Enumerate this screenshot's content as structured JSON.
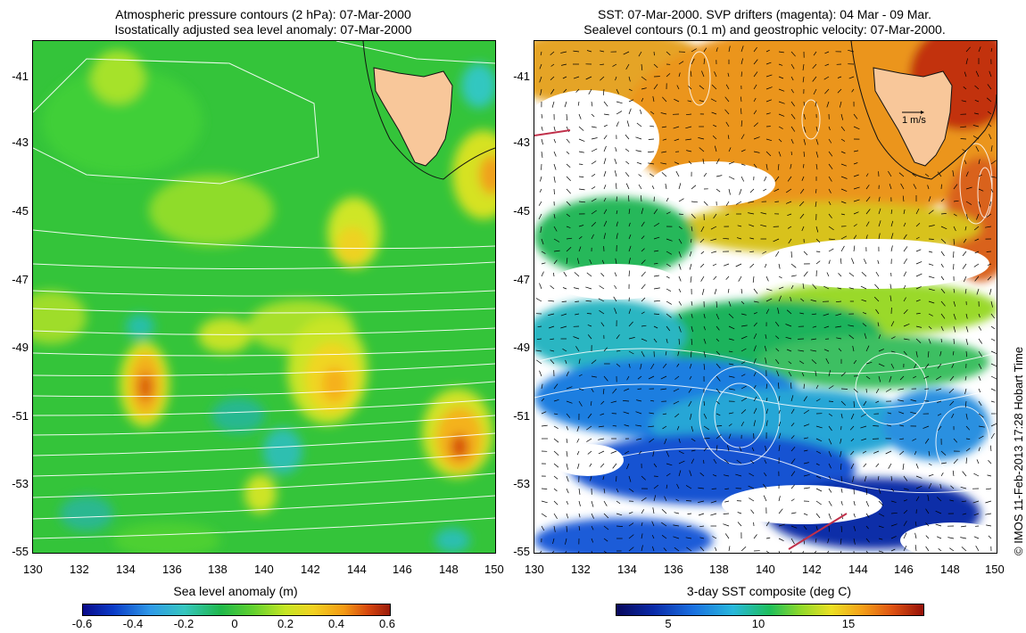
{
  "left_panel": {
    "title_line1": "Atmospheric pressure contours (2 hPa): 07-Mar-2000",
    "title_line2": "Isostatically adjusted sea level anomaly: 07-Mar-2000",
    "colorbar_title": "Sea level anomaly (m)",
    "colorbar_ticks": [
      "-0.6",
      "-0.4",
      "-0.2",
      "0",
      "0.2",
      "0.4",
      "0.6"
    ]
  },
  "right_panel": {
    "title_line1": "SST: 07-Mar-2000. SVP drifters (magenta): 04 Mar - 09 Mar.",
    "title_line2": "Sealevel contours (0.1 m) and geostrophic velocity: 07-Mar-2000.",
    "colorbar_title": "3-day SST composite (deg C)",
    "colorbar_ticks": [
      "5",
      "10",
      "15"
    ],
    "velocity_scale_label": "1 m/s"
  },
  "axes": {
    "x_ticks": [
      "130",
      "132",
      "134",
      "136",
      "138",
      "140",
      "142",
      "144",
      "146",
      "148",
      "150"
    ],
    "y_ticks": [
      "-41",
      "-43",
      "-45",
      "-47",
      "-49",
      "-51",
      "-53",
      "-55"
    ]
  },
  "credit": "© IMOS 11-Feb-2013 17:28 Hobart Time",
  "colors": {
    "land": "#f8c79a",
    "sla_background": "#32c83c",
    "sst_warm": "#e8891a",
    "sst_cold": "#1450d8"
  }
}
